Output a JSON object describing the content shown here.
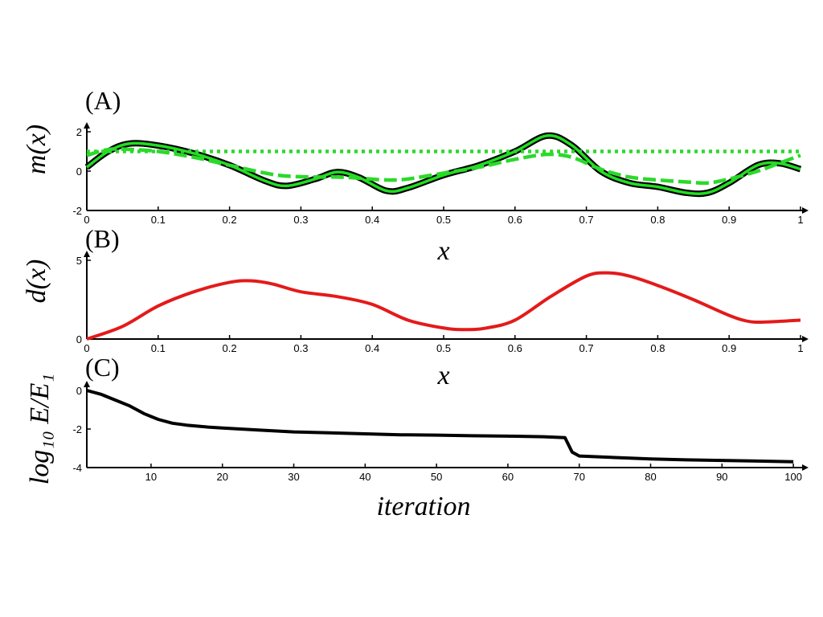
{
  "chart_data": [
    {
      "type": "line",
      "panel_label": "(A)",
      "xlabel": "x",
      "ylabel": "m(x)",
      "xlim": [
        0,
        1
      ],
      "ylim": [
        -2,
        2
      ],
      "x_ticks": [
        "0",
        "0.1",
        "0.2",
        "0.3",
        "0.4",
        "0.5",
        "0.6",
        "0.7",
        "0.8",
        "0.9",
        "1"
      ],
      "y_ticks": [
        "2",
        "0",
        "-2"
      ],
      "x": [
        0,
        0.03,
        0.06,
        0.1,
        0.15,
        0.2,
        0.25,
        0.28,
        0.32,
        0.35,
        0.38,
        0.42,
        0.45,
        0.5,
        0.55,
        0.6,
        0.645,
        0.68,
        0.72,
        0.76,
        0.8,
        0.84,
        0.87,
        0.9,
        0.94,
        0.97,
        1.0
      ],
      "series": [
        {
          "color": "#000000",
          "style": "solid-outlined",
          "values": [
            0.2,
            1.0,
            1.4,
            1.3,
            0.9,
            0.3,
            -0.5,
            -0.75,
            -0.4,
            -0.05,
            -0.3,
            -1.0,
            -0.85,
            -0.2,
            0.3,
            1.0,
            1.8,
            1.3,
            0.0,
            -0.6,
            -0.8,
            -1.1,
            -1.1,
            -0.6,
            0.3,
            0.4,
            0.1
          ]
        },
        {
          "color": "#2bd92b",
          "style": "dashed",
          "values": [
            0.8,
            1.1,
            1.1,
            1.0,
            0.7,
            0.3,
            -0.1,
            -0.25,
            -0.3,
            -0.3,
            -0.35,
            -0.45,
            -0.4,
            -0.1,
            0.2,
            0.6,
            0.85,
            0.7,
            0.1,
            -0.3,
            -0.45,
            -0.55,
            -0.6,
            -0.4,
            0.0,
            0.4,
            0.8
          ]
        },
        {
          "color": "#2bd92b",
          "style": "dotted",
          "values": [
            1.0,
            1.0,
            1.0,
            1.0,
            1.0,
            1.0,
            1.0,
            1.0,
            1.0,
            1.0,
            1.0,
            1.0,
            1.0,
            1.0,
            1.0,
            1.0,
            1.0,
            1.0,
            1.0,
            1.0,
            1.0,
            1.0,
            1.0,
            1.0,
            1.0,
            1.0,
            1.0
          ]
        }
      ]
    },
    {
      "type": "line",
      "panel_label": "(B)",
      "xlabel": "x",
      "ylabel": "d(x)",
      "xlim": [
        0,
        1
      ],
      "ylim": [
        0,
        5
      ],
      "x_ticks": [
        "0",
        "0.1",
        "0.2",
        "0.3",
        "0.4",
        "0.5",
        "0.6",
        "0.7",
        "0.8",
        "0.9",
        "1"
      ],
      "y_ticks": [
        "5",
        "0"
      ],
      "x": [
        0,
        0.05,
        0.1,
        0.15,
        0.2,
        0.23,
        0.26,
        0.3,
        0.35,
        0.4,
        0.45,
        0.5,
        0.53,
        0.56,
        0.6,
        0.65,
        0.7,
        0.73,
        0.76,
        0.8,
        0.85,
        0.9,
        0.93,
        0.96,
        1.0
      ],
      "series": [
        {
          "color": "#e41a1a",
          "style": "solid",
          "values": [
            0.0,
            0.8,
            2.1,
            3.0,
            3.6,
            3.7,
            3.5,
            3.0,
            2.7,
            2.2,
            1.2,
            0.7,
            0.6,
            0.7,
            1.2,
            2.7,
            4.0,
            4.2,
            4.0,
            3.4,
            2.5,
            1.5,
            1.1,
            1.1,
            1.2
          ]
        }
      ]
    },
    {
      "type": "line",
      "panel_label": "(C)",
      "xlabel": "iteration",
      "ylabel": "log₁₀ E/E₁",
      "xlim": [
        1,
        101
      ],
      "ylim": [
        -4,
        0
      ],
      "x_ticks": [
        "10",
        "20",
        "30",
        "40",
        "50",
        "60",
        "70",
        "80",
        "90",
        "100"
      ],
      "y_ticks": [
        "0",
        "-2",
        "-4"
      ],
      "x": [
        1,
        3,
        5,
        7,
        9,
        11,
        13,
        15,
        18,
        20,
        25,
        30,
        35,
        40,
        45,
        50,
        55,
        60,
        65,
        68,
        69,
        70,
        75,
        80,
        85,
        90,
        95,
        100
      ],
      "series": [
        {
          "color": "#000000",
          "style": "solid",
          "values": [
            0.0,
            -0.2,
            -0.5,
            -0.8,
            -1.2,
            -1.5,
            -1.7,
            -1.8,
            -1.9,
            -1.95,
            -2.05,
            -2.15,
            -2.2,
            -2.25,
            -2.3,
            -2.32,
            -2.35,
            -2.37,
            -2.4,
            -2.45,
            -3.2,
            -3.4,
            -3.48,
            -3.55,
            -3.6,
            -3.63,
            -3.66,
            -3.7
          ]
        }
      ]
    }
  ]
}
